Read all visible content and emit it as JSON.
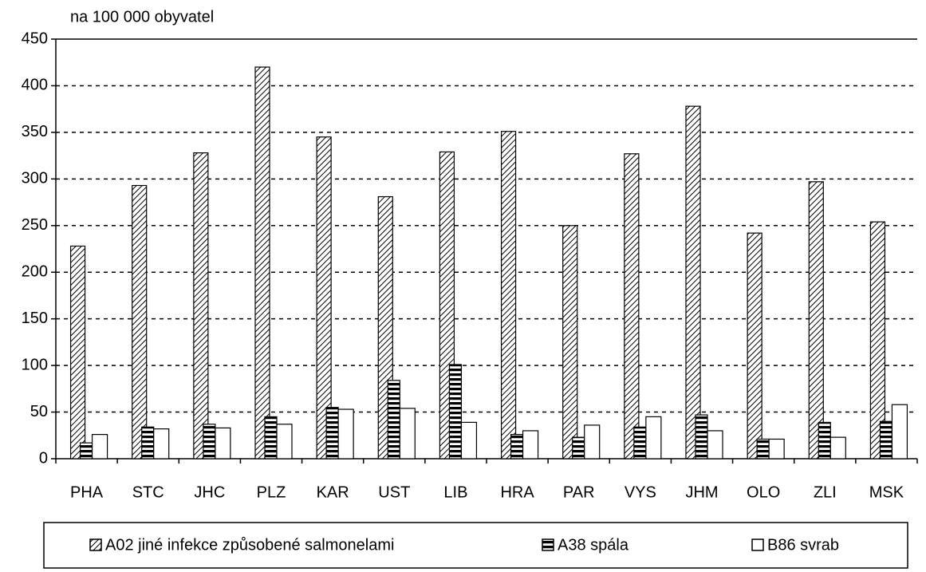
{
  "chart_data": {
    "type": "bar",
    "y_axis_label": "na 100 000 obyvatel",
    "categories": [
      "PHA",
      "STC",
      "JHC",
      "PLZ",
      "KAR",
      "UST",
      "LIB",
      "HRA",
      "PAR",
      "VYS",
      "JHM",
      "OLO",
      "ZLI",
      "MSK"
    ],
    "series": [
      {
        "name": "A02 jiné infekce způsobené salmonelami",
        "color": "#000000",
        "pattern": "diagonal",
        "values": [
          228,
          293,
          328,
          420,
          345,
          281,
          329,
          351,
          250,
          327,
          378,
          242,
          297,
          254
        ]
      },
      {
        "name": "A38 spála",
        "color": "#000000",
        "pattern": "horizontal",
        "values": [
          17,
          34,
          37,
          45,
          55,
          84,
          101,
          26,
          23,
          34,
          47,
          21,
          39,
          40
        ]
      },
      {
        "name": "B86 svrab",
        "color": "#000000",
        "pattern": "none",
        "values": [
          26,
          32,
          33,
          37,
          53,
          54,
          39,
          30,
          36,
          45,
          30,
          21,
          23,
          58
        ]
      }
    ],
    "ylim": [
      0,
      450
    ],
    "yticks": [
      0,
      50,
      100,
      150,
      200,
      250,
      300,
      350,
      400,
      450
    ],
    "grid": true,
    "legend": "bottom"
  }
}
